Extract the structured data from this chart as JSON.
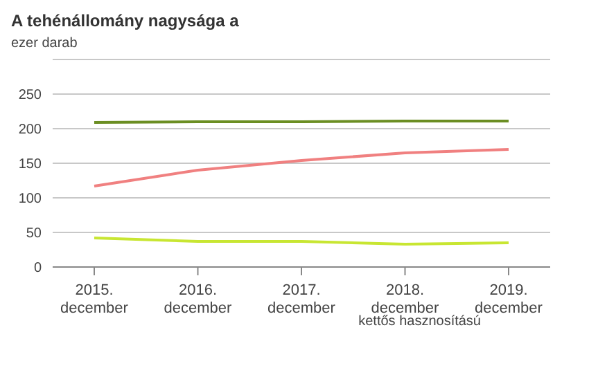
{
  "chart_data": {
    "type": "line",
    "title": "A tehénállomány nagysága a",
    "ylabel": "ezer darab",
    "categories": [
      "2015.\ndecember",
      "2016.\ndecember",
      "2017.\ndecember",
      "2018.\ndecember",
      "2019.\ndecember"
    ],
    "series": [
      {
        "color": "#6b8e23",
        "values": [
          209,
          210,
          210,
          211,
          211
        ]
      },
      {
        "color": "#f08080",
        "values": [
          117,
          140,
          154,
          165,
          170
        ]
      },
      {
        "color": "#c8e632",
        "values": [
          42,
          37,
          37,
          33,
          35
        ]
      }
    ],
    "ylim": [
      0,
      300
    ],
    "yticks": [
      0,
      50,
      100,
      150,
      200,
      250,
      {
        "value": 300,
        "label": null
      }
    ],
    "grid": "y",
    "marker": "none",
    "line_style": "solid",
    "annotations": [
      "kettős hasznosítású"
    ]
  }
}
